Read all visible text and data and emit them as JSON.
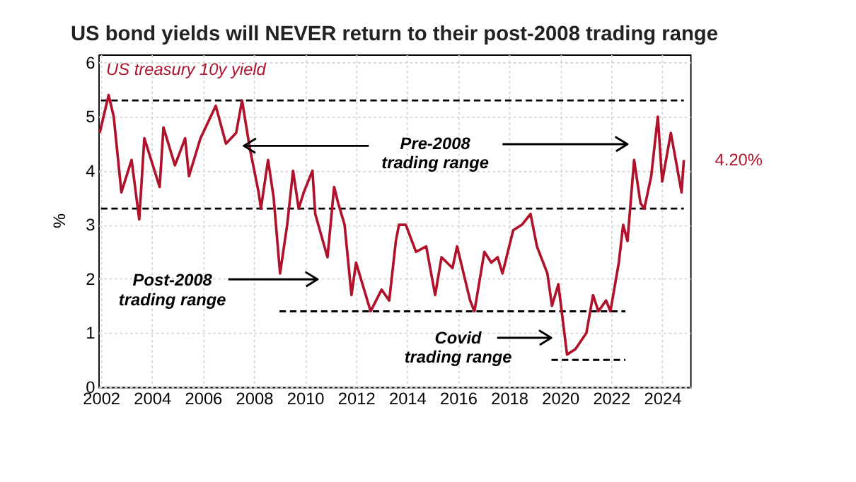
{
  "chart_data": {
    "type": "line",
    "title": "US bond yields will NEVER return to their post-2008 trading range",
    "ylabel": "%",
    "xlim": [
      2001.9,
      2025.1
    ],
    "ylim": [
      0,
      6.15
    ],
    "xticks": [
      2002,
      2004,
      2006,
      2008,
      2010,
      2012,
      2014,
      2016,
      2018,
      2020,
      2022,
      2024
    ],
    "yticks": [
      0,
      1,
      2,
      3,
      4,
      5,
      6
    ],
    "grid": true,
    "legend": false,
    "marker": "none",
    "series": [
      {
        "name": "US treasury 10y yield",
        "color": "#b0122b",
        "line_style": "solid",
        "x": [
          2001.95,
          2002.3,
          2002.5,
          2002.8,
          2003.2,
          2003.5,
          2003.7,
          2004.1,
          2004.3,
          2004.45,
          2004.9,
          2005.3,
          2005.45,
          2005.9,
          2006.5,
          2006.9,
          2007.3,
          2007.53,
          2007.84,
          2008.18,
          2008.27,
          2008.55,
          2008.77,
          2009.02,
          2009.3,
          2009.53,
          2009.75,
          2009.95,
          2010.29,
          2010.4,
          2010.88,
          2011.14,
          2011.3,
          2011.55,
          2011.82,
          2012.0,
          2012.57,
          2013.0,
          2013.3,
          2013.56,
          2013.68,
          2013.95,
          2014.35,
          2014.75,
          2015.1,
          2015.35,
          2015.78,
          2015.96,
          2016.47,
          2016.64,
          2017.03,
          2017.3,
          2017.55,
          2017.74,
          2018.16,
          2018.5,
          2018.84,
          2019.09,
          2019.5,
          2019.68,
          2019.93,
          2020.27,
          2020.6,
          2021.03,
          2021.29,
          2021.5,
          2021.8,
          2021.97,
          2022.3,
          2022.47,
          2022.64,
          2022.9,
          2023.15,
          2023.3,
          2023.57,
          2023.83,
          2024.0,
          2024.34,
          2024.76,
          2024.85
        ],
        "values": [
          4.7,
          5.4,
          5.0,
          3.6,
          4.2,
          3.1,
          4.6,
          4.0,
          3.7,
          4.8,
          4.1,
          4.6,
          3.9,
          4.6,
          5.2,
          4.5,
          4.7,
          5.3,
          4.4,
          3.6,
          3.3,
          4.2,
          3.5,
          2.1,
          3.0,
          4.0,
          3.3,
          3.6,
          4.0,
          3.2,
          2.4,
          3.7,
          3.4,
          3.0,
          1.7,
          2.3,
          1.4,
          1.8,
          1.6,
          2.7,
          3.0,
          3.0,
          2.5,
          2.6,
          1.7,
          2.4,
          2.2,
          2.6,
          1.6,
          1.4,
          2.5,
          2.3,
          2.4,
          2.1,
          2.9,
          3.0,
          3.2,
          2.6,
          2.1,
          1.5,
          1.9,
          0.6,
          0.7,
          1.0,
          1.7,
          1.4,
          1.6,
          1.4,
          2.3,
          3.0,
          2.7,
          4.2,
          3.4,
          3.3,
          3.9,
          5.0,
          3.8,
          4.7,
          3.6,
          4.2
        ],
        "value_labels": [
          null,
          null,
          null,
          null,
          null,
          null,
          null,
          null,
          null,
          null,
          null,
          null,
          null,
          null,
          null,
          null,
          null,
          null,
          null,
          null,
          null,
          null,
          null,
          null,
          null,
          null,
          null,
          null,
          null,
          null,
          null,
          null,
          null,
          null,
          null,
          null,
          null,
          null,
          null,
          null,
          null,
          null,
          null,
          null,
          null,
          null,
          null,
          null,
          null,
          null,
          null,
          null,
          null,
          null,
          null,
          null,
          null,
          null,
          null,
          null,
          null,
          null,
          null,
          null,
          null,
          null,
          null,
          null,
          null,
          null,
          null,
          null,
          null,
          null,
          null,
          null,
          null,
          null,
          null,
          "4.20%"
        ]
      },
      {
        "type": "line",
        "color": "#000000",
        "line_style": "dashed",
        "x": [
          2002.0,
          2024.85
        ],
        "values": [
          5.3,
          5.3
        ]
      },
      {
        "type": "line",
        "color": "#000000",
        "line_style": "dashed",
        "x": [
          2002.0,
          2024.85
        ],
        "values": [
          3.3,
          3.3
        ]
      },
      {
        "type": "line",
        "color": "#000000",
        "line_style": "dashed",
        "x": [
          2009.0,
          2022.56
        ],
        "values": [
          1.4,
          1.4
        ]
      },
      {
        "type": "line",
        "color": "#000000",
        "line_style": "dashed",
        "x": [
          2019.66,
          2022.56
        ],
        "values": [
          0.5,
          0.5
        ]
      }
    ],
    "annotations": [
      {
        "text": "Pre-2008\ntrading range",
        "x": 2007.6,
        "y": 4.46
      },
      "Post-2008\ntrading range",
      "Covid\ntrading range"
    ]
  }
}
